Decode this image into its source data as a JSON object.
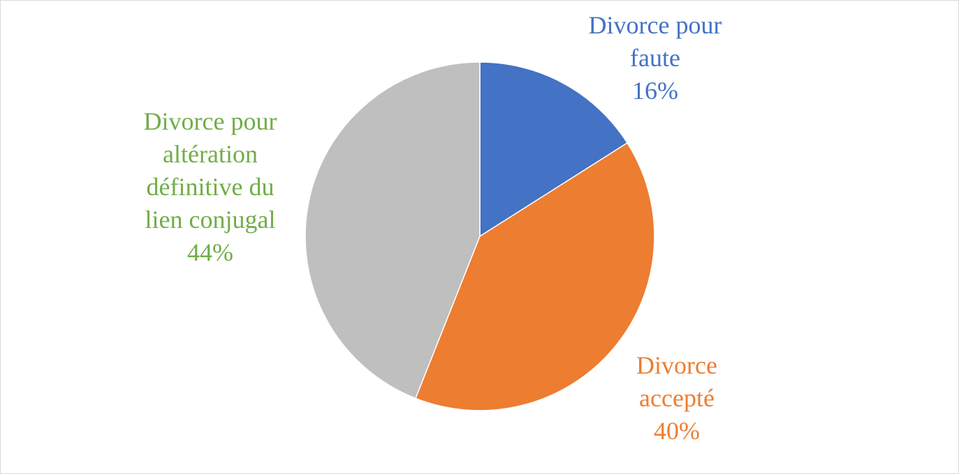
{
  "chart_data": {
    "type": "pie",
    "categories": [
      "Divorce pour faute",
      "Divorce accepté",
      "Divorce pour altération définitive du lien conjugal"
    ],
    "values": [
      16,
      40,
      44
    ],
    "value_labels": [
      "16%",
      "40%",
      "44%"
    ],
    "colors": [
      "#4472c4",
      "#ed7d31",
      "#bfbfbf"
    ],
    "label_colors": [
      "#4472c4",
      "#ed7d31",
      "#70ad47"
    ]
  }
}
